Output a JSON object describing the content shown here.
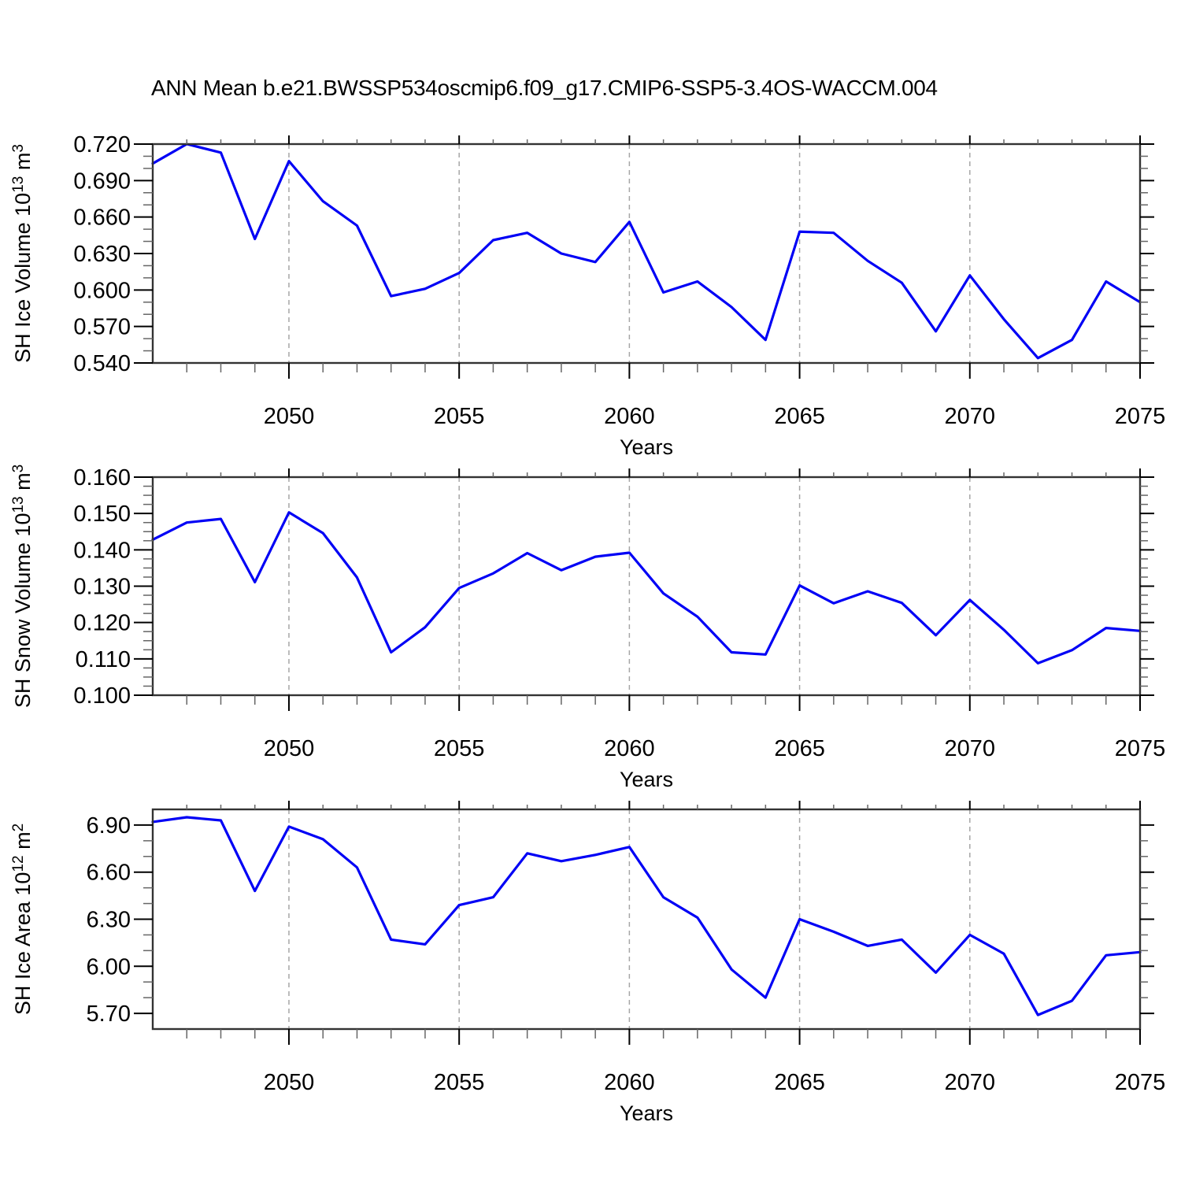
{
  "title": "ANN Mean b.e21.BWSSP534oscmip6.f09_g17.CMIP6-SSP5-3.4OS-WACCM.004",
  "colors": {
    "line": "#0000f5",
    "axis": "#333333",
    "grid": "#a6a6a6",
    "tick_major": "#000000",
    "tick_minor": "#666666",
    "text": "#000000",
    "background": "#ffffff"
  },
  "x_axis": {
    "label": "Years",
    "xlim": [
      2046,
      2075
    ],
    "major_ticks": [
      2050,
      2055,
      2060,
      2065,
      2070,
      2075
    ],
    "minor_step": 1,
    "gridline_years": [
      2050,
      2055,
      2060,
      2065,
      2070
    ]
  },
  "chart_data": [
    {
      "name": "sh-ice-volume",
      "type": "line",
      "ylabel_text": "SH Ice Volume 10^13 m^3",
      "ylabel_parts": [
        {
          "t": "SH Ice Volume 10"
        },
        {
          "t": "13",
          "sup": true
        },
        {
          "t": " m"
        },
        {
          "t": "3",
          "sup": true
        }
      ],
      "xlabel": "Years",
      "ylim": [
        0.54,
        0.72
      ],
      "yticks": {
        "major_start": 0.54,
        "major_end": 0.72,
        "major_step": 0.03,
        "minor_step": 0.01,
        "decimals": 3
      },
      "grid": "vertical-dashed",
      "legend": "none",
      "x": [
        2046,
        2047,
        2048,
        2049,
        2050,
        2051,
        2052,
        2053,
        2054,
        2055,
        2056,
        2057,
        2058,
        2059,
        2060,
        2061,
        2062,
        2063,
        2064,
        2065,
        2066,
        2067,
        2068,
        2069,
        2070,
        2071,
        2072,
        2073,
        2074,
        2075
      ],
      "values": [
        0.704,
        0.72,
        0.713,
        0.642,
        0.706,
        0.673,
        0.653,
        0.595,
        0.601,
        0.614,
        0.641,
        0.647,
        0.63,
        0.623,
        0.656,
        0.598,
        0.607,
        0.586,
        0.559,
        0.648,
        0.647,
        0.624,
        0.606,
        0.566,
        0.612,
        0.576,
        0.544,
        0.559,
        0.607,
        0.59
      ]
    },
    {
      "name": "sh-snow-volume",
      "type": "line",
      "ylabel_text": "SH Snow Volume 10^13 m^3",
      "ylabel_parts": [
        {
          "t": "SH Snow Volume 10"
        },
        {
          "t": "13",
          "sup": true
        },
        {
          "t": " m"
        },
        {
          "t": "3",
          "sup": true
        }
      ],
      "xlabel": "Years",
      "ylim": [
        0.1,
        0.16
      ],
      "yticks": {
        "major_start": 0.1,
        "major_end": 0.16,
        "major_step": 0.01,
        "minor_step": 0.0025,
        "decimals": 3
      },
      "grid": "vertical-dashed",
      "legend": "none",
      "x": [
        2046,
        2047,
        2048,
        2049,
        2050,
        2051,
        2052,
        2053,
        2054,
        2055,
        2056,
        2057,
        2058,
        2059,
        2060,
        2061,
        2062,
        2063,
        2064,
        2065,
        2066,
        2067,
        2068,
        2069,
        2070,
        2071,
        2072,
        2073,
        2074,
        2075
      ],
      "values": [
        0.1428,
        0.1475,
        0.1485,
        0.1311,
        0.1503,
        0.1446,
        0.1324,
        0.1118,
        0.1187,
        0.1295,
        0.1335,
        0.1391,
        0.1344,
        0.1381,
        0.1392,
        0.128,
        0.1216,
        0.1118,
        0.1112,
        0.1302,
        0.1253,
        0.1286,
        0.1254,
        0.1165,
        0.1262,
        0.118,
        0.1088,
        0.1124,
        0.1185,
        0.1177
      ]
    },
    {
      "name": "sh-ice-area",
      "type": "line",
      "ylabel_text": "SH Ice Area 10^12 m^2",
      "ylabel_parts": [
        {
          "t": "SH Ice Area 10"
        },
        {
          "t": "12",
          "sup": true
        },
        {
          "t": " m"
        },
        {
          "t": "2",
          "sup": true
        }
      ],
      "xlabel": "Years",
      "ylim": [
        5.6,
        7.0
      ],
      "yticks": {
        "major_start": 5.7,
        "major_end": 6.9,
        "major_step": 0.3,
        "minor_step": 0.1,
        "decimals": 2
      },
      "grid": "vertical-dashed",
      "legend": "none",
      "x": [
        2046,
        2047,
        2048,
        2049,
        2050,
        2051,
        2052,
        2053,
        2054,
        2055,
        2056,
        2057,
        2058,
        2059,
        2060,
        2061,
        2062,
        2063,
        2064,
        2065,
        2066,
        2067,
        2068,
        2069,
        2070,
        2071,
        2072,
        2073,
        2074,
        2075
      ],
      "values": [
        6.92,
        6.95,
        6.93,
        6.48,
        6.89,
        6.81,
        6.63,
        6.17,
        6.14,
        6.39,
        6.44,
        6.72,
        6.67,
        6.71,
        6.76,
        6.44,
        6.31,
        5.98,
        5.8,
        6.3,
        6.22,
        6.13,
        6.17,
        5.96,
        6.2,
        6.08,
        5.69,
        5.78,
        6.07,
        6.09
      ]
    }
  ]
}
